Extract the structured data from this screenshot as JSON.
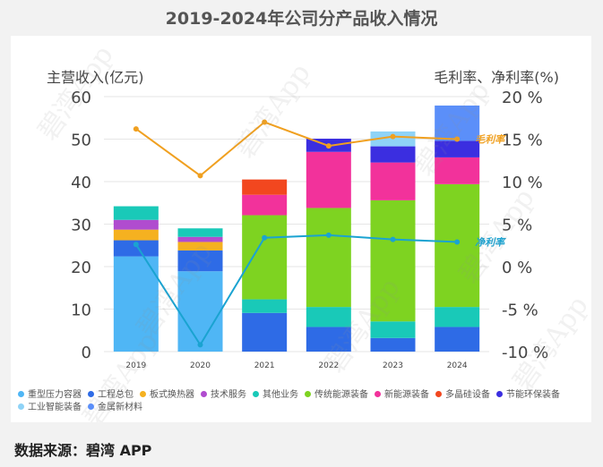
{
  "page": {
    "title": "2019-2024年公司分产品收入情况",
    "source": "数据来源：碧湾 APP",
    "watermark": "碧湾App"
  },
  "chart_data": {
    "type": "bar",
    "stacked": true,
    "title": "2019-2024年公司分产品收入情况",
    "ylabel": "主营收入(亿元)",
    "ylabel_right": "毛利率、净利率(%)",
    "categories": [
      "2019",
      "2020",
      "2021",
      "2022",
      "2023",
      "2024"
    ],
    "ylim": [
      0,
      60
    ],
    "yticks": [
      0,
      10,
      20,
      30,
      40,
      50,
      60
    ],
    "ylim_right": [
      -10,
      20
    ],
    "yticks_right": [
      -10,
      -5,
      0,
      5,
      10,
      15,
      20
    ],
    "yticks_right_labels": [
      "-10 %",
      "-5 %",
      "0 %",
      "5 %",
      "10 %",
      "15 %",
      "20 %"
    ],
    "series": [
      {
        "name": "重型压力容器",
        "color": "#4fb6f5",
        "values": [
          22.4,
          18.9,
          0,
          0,
          0,
          0
        ]
      },
      {
        "name": "工程总包",
        "color": "#2e6be6",
        "values": [
          3.8,
          4.9,
          9.1,
          5.8,
          3.2,
          5.8
        ]
      },
      {
        "name": "板式换热器",
        "color": "#f5b120",
        "values": [
          2.5,
          2.0,
          0,
          0,
          0,
          0
        ]
      },
      {
        "name": "技术服务",
        "color": "#b04ccf",
        "values": [
          2.3,
          1.2,
          0,
          0,
          0,
          0
        ]
      },
      {
        "name": "其他业务",
        "color": "#19c9b8",
        "values": [
          3.2,
          2.0,
          3.2,
          4.7,
          3.9,
          4.7
        ]
      },
      {
        "name": "传统能源装备",
        "color": "#7ed321",
        "values": [
          0,
          0,
          19.8,
          23.3,
          28.5,
          28.9
        ]
      },
      {
        "name": "新能源装备",
        "color": "#f2329b",
        "values": [
          0,
          0,
          4.8,
          13.2,
          8.9,
          6.3
        ]
      },
      {
        "name": "多晶硅设备",
        "color": "#f2471f",
        "values": [
          0,
          0,
          3.6,
          0,
          0,
          0
        ]
      },
      {
        "name": "节能环保装备",
        "color": "#3b2ee0",
        "values": [
          0,
          0,
          0,
          3.1,
          3.8,
          3.9
        ]
      },
      {
        "name": "工业智能装备",
        "color": "#8fd3f7",
        "values": [
          0,
          0,
          0,
          0,
          3.5,
          0
        ]
      },
      {
        "name": "金属新材料",
        "color": "#5b8ff9",
        "values": [
          0,
          0,
          0,
          0,
          0,
          8.3
        ]
      }
    ],
    "lines": [
      {
        "name": "毛利率",
        "label": "毛利率",
        "color": "#f0a020",
        "axis": "right",
        "values": [
          16.2,
          10.7,
          17.0,
          14.2,
          15.3,
          15.0
        ]
      },
      {
        "name": "净利率",
        "label": "净利率",
        "color": "#1aa3d1",
        "axis": "right",
        "values": [
          2.6,
          -9.2,
          3.4,
          3.7,
          3.2,
          2.9
        ]
      }
    ]
  }
}
